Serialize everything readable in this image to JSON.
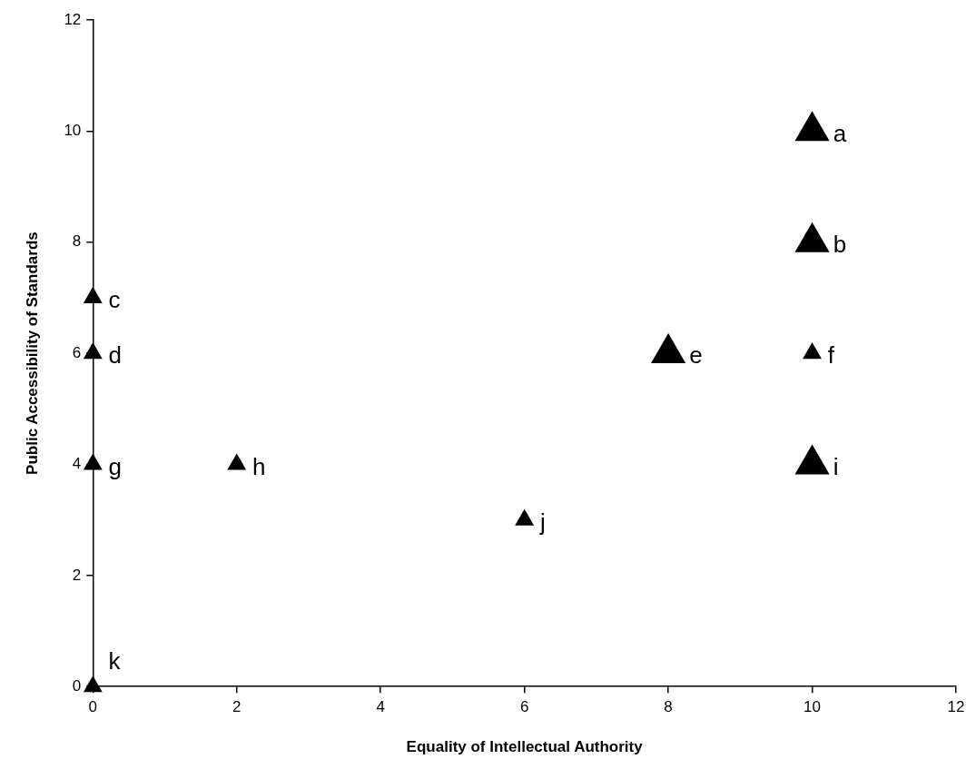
{
  "chart_data": {
    "type": "bubble",
    "xlabel": "Equality of Intellectual Authority",
    "ylabel": "Public Accessibility of Standards",
    "marker": "triangle",
    "series": [
      {
        "color": "#000000",
        "x": [
          10,
          10,
          0,
          0,
          8,
          10,
          0,
          2,
          10,
          6,
          0
        ],
        "values": [
          10,
          8,
          7,
          6,
          6,
          6,
          4,
          4,
          4,
          3,
          0
        ],
        "sizes": [
          1,
          1,
          0.3,
          0.3,
          1,
          0.3,
          0.3,
          0.3,
          1,
          0.3,
          0.3
        ]
      }
    ],
    "xlim": [
      0,
      12
    ],
    "xticks": [
      0,
      2,
      4,
      6,
      8,
      10,
      12
    ],
    "ylim": [
      0,
      12
    ],
    "yticks": [
      0,
      2,
      4,
      6,
      8,
      10,
      12
    ],
    "annotations": [
      "a",
      "b",
      "c",
      "d",
      "e",
      "f",
      "g",
      "h",
      "i",
      "j",
      "k"
    ]
  }
}
